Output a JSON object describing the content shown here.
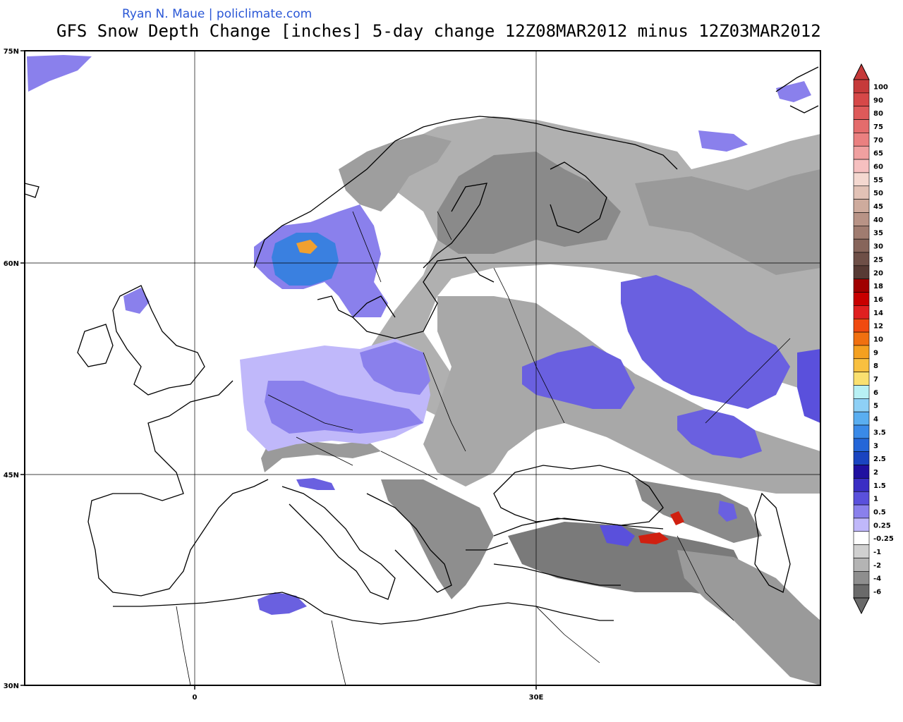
{
  "header": {
    "credit": "Ryan N. Maue | policlimate.com",
    "title": "GFS Snow Depth Change [inches] 5-day change 12Z08MAR2012 minus 12Z03MAR2012"
  },
  "axes": {
    "lat_labels": [
      "75N",
      "60N",
      "45N",
      "30N"
    ],
    "lon_labels": [
      "0",
      "30E"
    ]
  },
  "colorbar": {
    "levels": [
      {
        "label": "100",
        "color": "#c63a3a"
      },
      {
        "label": "90",
        "color": "#d64848"
      },
      {
        "label": "80",
        "color": "#de5a5a"
      },
      {
        "label": "75",
        "color": "#e46c6c"
      },
      {
        "label": "70",
        "color": "#ea8080"
      },
      {
        "label": "65",
        "color": "#f0a0a0"
      },
      {
        "label": "60",
        "color": "#f6c0c0"
      },
      {
        "label": "55",
        "color": "#f4d8d0"
      },
      {
        "label": "50",
        "color": "#e2c2b6"
      },
      {
        "label": "45",
        "color": "#ceab9d"
      },
      {
        "label": "40",
        "color": "#b89386"
      },
      {
        "label": "35",
        "color": "#a07c70"
      },
      {
        "label": "30",
        "color": "#87655b"
      },
      {
        "label": "25",
        "color": "#6e4f47"
      },
      {
        "label": "20",
        "color": "#573a34"
      },
      {
        "label": "18",
        "color": "#a00000"
      },
      {
        "label": "16",
        "color": "#c80000"
      },
      {
        "label": "14",
        "color": "#e02020"
      },
      {
        "label": "12",
        "color": "#f04a10"
      },
      {
        "label": "10",
        "color": "#f07010"
      },
      {
        "label": "9",
        "color": "#f4a020"
      },
      {
        "label": "8",
        "color": "#f8c040"
      },
      {
        "label": "7",
        "color": "#fae070"
      },
      {
        "label": "6",
        "color": "#b8f0f4"
      },
      {
        "label": "5",
        "color": "#8ed0f6"
      },
      {
        "label": "4",
        "color": "#5aaef0"
      },
      {
        "label": "3.5",
        "color": "#3a8ae8"
      },
      {
        "label": "3",
        "color": "#2466d8"
      },
      {
        "label": "2.5",
        "color": "#1a44c0"
      },
      {
        "label": "2",
        "color": "#2010a0"
      },
      {
        "label": "1.5",
        "color": "#3a2ec4"
      },
      {
        "label": "1",
        "color": "#5a50dc"
      },
      {
        "label": "0.5",
        "color": "#8a80ec"
      },
      {
        "label": "0.25",
        "color": "#c0b8fa"
      },
      {
        "label": "-0.25",
        "color": "#ffffff"
      },
      {
        "label": "-1",
        "color": "#d0d0d0"
      },
      {
        "label": "-2",
        "color": "#b4b4b4"
      },
      {
        "label": "-4",
        "color": "#8e8e8e"
      },
      {
        "label": "-6",
        "color": "#6a6a6a"
      }
    ]
  },
  "map_colors": {
    "grey_light": "#c4c4c4",
    "grey_mid": "#9e9e9e",
    "grey_dark": "#6e6e6e",
    "purple_light": "#c0b8fa",
    "purple_mid": "#8a80ec",
    "purple_dark": "#5a50dc",
    "blue_deep": "#2a40c8",
    "red_hot": "#d02010",
    "orange": "#f0a030"
  }
}
